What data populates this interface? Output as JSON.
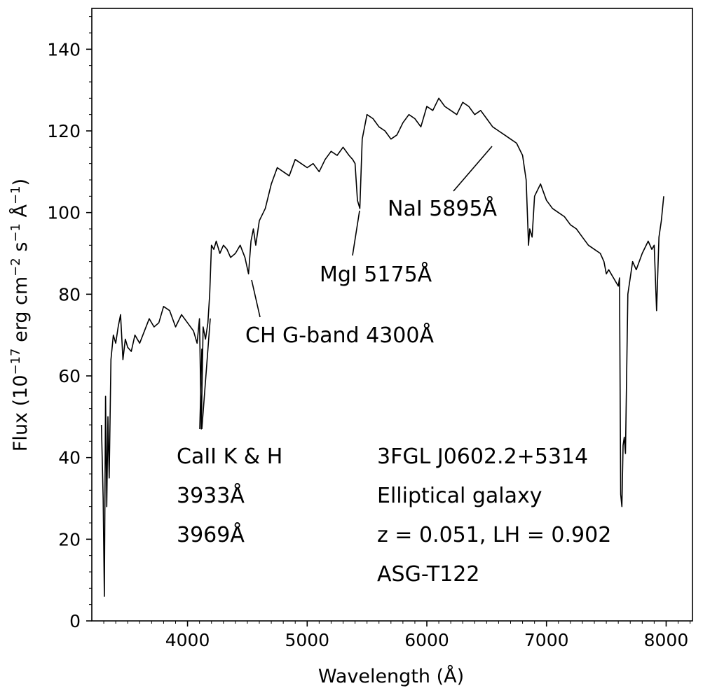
{
  "chart_data": {
    "type": "line",
    "title": "",
    "xlabel": "Wavelength (Å)",
    "ylabel": "Flux (10",
    "ylabel_parts": [
      "Flux (10",
      "−17",
      " erg cm",
      "−2",
      " s",
      "−1",
      " Å",
      "−1",
      ")"
    ],
    "xlim": [
      3200,
      8220
    ],
    "ylim": [
      0,
      150
    ],
    "x_ticks": [
      4000,
      5000,
      6000,
      7000,
      8000
    ],
    "x_tick_labels": [
      "4000",
      "5000",
      "6000",
      "7000",
      "8000"
    ],
    "y_ticks": [
      0,
      20,
      40,
      60,
      80,
      100,
      120,
      140
    ],
    "y_tick_labels": [
      "0",
      "20",
      "40",
      "60",
      "80",
      "100",
      "120",
      "140"
    ],
    "grid": false,
    "line_color": "#000000",
    "series": [
      {
        "x": [
          3280,
          3295,
          3305,
          3315,
          3325,
          3335,
          3345,
          3360,
          3380,
          3400,
          3420,
          3440,
          3460,
          3480,
          3500,
          3530,
          3560,
          3600,
          3640,
          3680,
          3720,
          3760,
          3800,
          3850,
          3900,
          3950,
          4000,
          4050,
          4080,
          4100,
          4115,
          4130,
          4150,
          4170,
          4185,
          4200,
          4220,
          4240,
          4270,
          4300,
          4330,
          4360,
          4400,
          4440,
          4480,
          4510,
          4530,
          4550,
          4570,
          4600,
          4650,
          4700,
          4750,
          4800,
          4850,
          4900,
          4950,
          5000,
          5050,
          5100,
          5150,
          5200,
          5250,
          5300,
          5350,
          5380,
          5400,
          5420,
          5440,
          5460,
          5500,
          5550,
          5600,
          5650,
          5700,
          5750,
          5800,
          5850,
          5900,
          5950,
          6000,
          6050,
          6100,
          6150,
          6200,
          6250,
          6300,
          6350,
          6400,
          6450,
          6500,
          6550,
          6600,
          6650,
          6700,
          6750,
          6800,
          6830,
          6850,
          6860,
          6880,
          6900,
          6950,
          7000,
          7050,
          7100,
          7150,
          7200,
          7250,
          7300,
          7350,
          7400,
          7450,
          7480,
          7500,
          7520,
          7540,
          7560,
          7580,
          7600,
          7610,
          7620,
          7630,
          7640,
          7650,
          7660,
          7680,
          7700,
          7720,
          7750,
          7800,
          7850,
          7880,
          7900,
          7920,
          7940,
          7960,
          7980
        ],
        "y": [
          48,
          30,
          6,
          55,
          28,
          50,
          35,
          64,
          70,
          68,
          72,
          75,
          64,
          69,
          67,
          66,
          70,
          68,
          71,
          74,
          72,
          73,
          77,
          76,
          72,
          75,
          73,
          71,
          68,
          74,
          47,
          72,
          69,
          73,
          80,
          92,
          91,
          93,
          90,
          92,
          91,
          89,
          90,
          92,
          89,
          85,
          93,
          96,
          92,
          98,
          101,
          107,
          111,
          110,
          109,
          113,
          112,
          111,
          112,
          110,
          113,
          115,
          114,
          116,
          114,
          113,
          112,
          103,
          101,
          118,
          124,
          123,
          121,
          120,
          118,
          119,
          122,
          124,
          123,
          121,
          126,
          125,
          128,
          126,
          125,
          124,
          127,
          126,
          124,
          125,
          123,
          121,
          120,
          119,
          118,
          117,
          114,
          108,
          92,
          96,
          94,
          104,
          107,
          103,
          101,
          100,
          99,
          97,
          96,
          94,
          92,
          91,
          90,
          88,
          85,
          86,
          85,
          84,
          83,
          82,
          84,
          31,
          28,
          43,
          45,
          41,
          80,
          84,
          88,
          86,
          90,
          93,
          91,
          92,
          76,
          94,
          98,
          104
        ]
      }
    ],
    "annotations": [
      {
        "id": "caii",
        "lines": [
          "CaII K & H",
          "3933Å",
          "3969Å"
        ]
      },
      {
        "id": "gband",
        "lines": [
          "CH G-band 4300Å"
        ]
      },
      {
        "id": "mgi",
        "lines": [
          "MgI 5175Å"
        ]
      },
      {
        "id": "nai",
        "lines": [
          "NaI 5895Å"
        ]
      },
      {
        "id": "source",
        "lines": [
          "3FGL J0602.2+5314",
          "Elliptical galaxy",
          "z = 0.051, LH = 0.902",
          "ASG-T122"
        ]
      }
    ]
  }
}
